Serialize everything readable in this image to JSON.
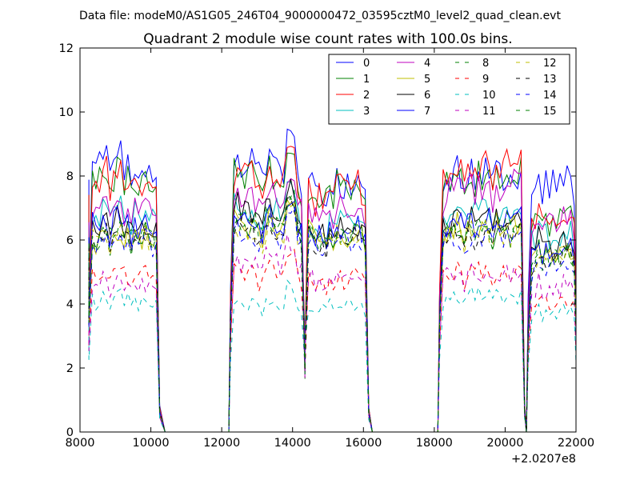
{
  "chart_data": {
    "type": "line",
    "suptitle": "Data file: modeM0/AS1G05_246T04_9000000472_03595cztM0_level2_quad_clean.evt",
    "title": "Quadrant 2 module wise count rates with 100.0s bins.",
    "xlabel": "",
    "ylabel": "",
    "x_offset_label": "+2.0207e8",
    "xlim": [
      8000,
      22000
    ],
    "ylim": [
      0,
      12
    ],
    "x_ticks": [
      "8000",
      "10000",
      "12000",
      "14000",
      "16000",
      "18000",
      "20000",
      "22000"
    ],
    "y_ticks": [
      "0",
      "2",
      "4",
      "6",
      "8",
      "10",
      "12"
    ],
    "grid": false,
    "legend_position": "top-right",
    "legend_columns": 4,
    "segments": [
      {
        "start": 8250,
        "end": 10250
      },
      {
        "start": 12250,
        "end": 14350
      },
      {
        "start": 14350,
        "end": 16150
      },
      {
        "start": 18150,
        "end": 20550
      },
      {
        "start": 20650,
        "end": 22000
      }
    ],
    "series": [
      {
        "name": "0",
        "color": "#0000ff",
        "dash": "solid",
        "levels": [
          8.3,
          8.3,
          7.6,
          7.9,
          7.8
        ]
      },
      {
        "name": "1",
        "color": "#008000",
        "dash": "solid",
        "levels": [
          7.8,
          7.9,
          7.5,
          7.9,
          6.6
        ]
      },
      {
        "name": "2",
        "color": "#ff0000",
        "dash": "solid",
        "levels": [
          7.8,
          7.9,
          7.5,
          8.1,
          6.8
        ]
      },
      {
        "name": "3",
        "color": "#00bfbf",
        "dash": "solid",
        "levels": [
          6.8,
          6.9,
          6.5,
          6.9,
          6.2
        ]
      },
      {
        "name": "4",
        "color": "#bf00bf",
        "dash": "solid",
        "levels": [
          6.9,
          7.2,
          6.9,
          7.5,
          6.6
        ]
      },
      {
        "name": "5",
        "color": "#bfbf00",
        "dash": "solid",
        "levels": [
          6.0,
          6.4,
          6.1,
          6.3,
          5.6
        ]
      },
      {
        "name": "6",
        "color": "#000000",
        "dash": "solid",
        "levels": [
          6.4,
          6.8,
          6.3,
          6.6,
          5.8
        ]
      },
      {
        "name": "7",
        "color": "#0000ff",
        "dash": "solid",
        "levels": [
          6.4,
          6.5,
          6.2,
          6.5,
          5.7
        ]
      },
      {
        "name": "8",
        "color": "#008000",
        "dash": "dashed",
        "levels": [
          6.1,
          6.5,
          6.1,
          6.3,
          5.5
        ]
      },
      {
        "name": "9",
        "color": "#ff0000",
        "dash": "dashed",
        "levels": [
          4.9,
          4.9,
          4.8,
          4.9,
          4.1
        ]
      },
      {
        "name": "10",
        "color": "#00bfbf",
        "dash": "dashed",
        "levels": [
          4.1,
          4.0,
          3.9,
          4.2,
          3.7
        ]
      },
      {
        "name": "11",
        "color": "#bf00bf",
        "dash": "dashed",
        "levels": [
          4.6,
          5.3,
          4.8,
          4.9,
          4.5
        ]
      },
      {
        "name": "12",
        "color": "#bfbf00",
        "dash": "dashed",
        "levels": [
          6.0,
          6.2,
          6.0,
          6.2,
          5.4
        ]
      },
      {
        "name": "13",
        "color": "#000000",
        "dash": "dashed",
        "levels": [
          6.1,
          6.3,
          5.9,
          6.1,
          5.3
        ]
      },
      {
        "name": "14",
        "color": "#0000ff",
        "dash": "dashed",
        "levels": [
          5.9,
          6.2,
          5.8,
          6.0,
          5.2
        ]
      },
      {
        "name": "15",
        "color": "#008000",
        "dash": "dashed",
        "levels": [
          6.2,
          6.5,
          6.1,
          6.3,
          5.5
        ]
      }
    ]
  }
}
